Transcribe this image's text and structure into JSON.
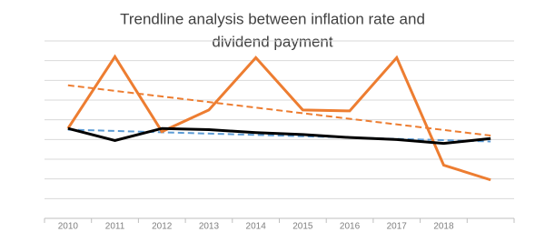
{
  "chart_data": {
    "type": "line",
    "title": [
      "Trendline analysis between inflation rate and",
      "dividend payment"
    ],
    "categories": [
      "2010",
      "2011",
      "2012",
      "2013",
      "2014",
      "2015",
      "2016",
      "2017",
      "2018",
      null
    ],
    "series": [
      {
        "color": "#ED7D31",
        "width": 3,
        "values": [
          4.56,
          8.2,
          4.4,
          5.5,
          8.15,
          5.5,
          5.45,
          8.15,
          2.7,
          1.95
        ],
        "trend": {
          "color": "#ED7D31",
          "values": [
            6.75,
            4.2
          ]
        }
      },
      {
        "color": "#000000",
        "width": 3,
        "values": [
          4.56,
          3.95,
          4.56,
          4.5,
          4.35,
          4.25,
          4.1,
          4.0,
          3.8,
          4.05
        ],
        "trend": {
          "color": "#5B9BD5",
          "values": [
            4.5,
            3.9
          ]
        }
      }
    ],
    "ylim": [
      0,
      9
    ],
    "yticks": [
      0,
      1,
      2,
      3,
      4,
      5,
      6,
      7,
      8,
      9
    ],
    "grid": true,
    "ytick_labels": false
  }
}
